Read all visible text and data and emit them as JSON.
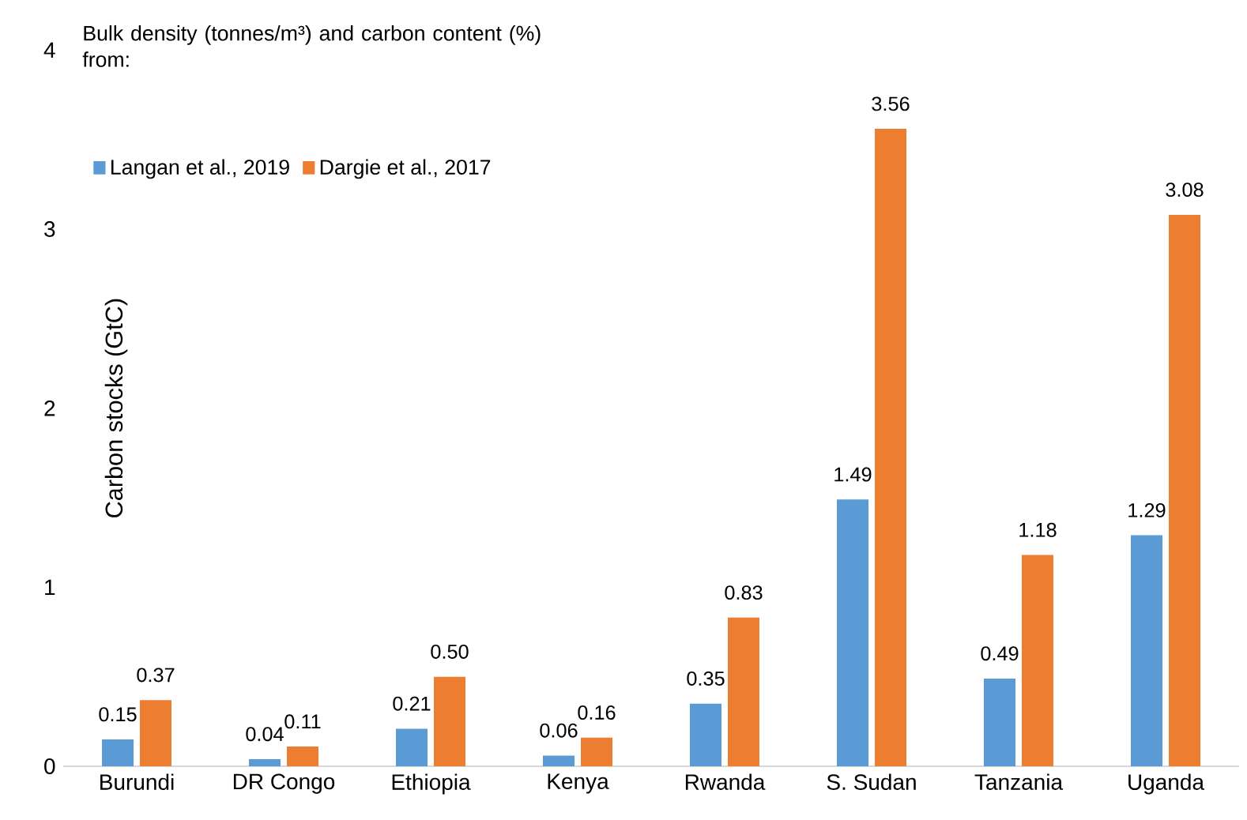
{
  "chart_data": {
    "type": "bar",
    "legend_title": "Bulk density (tonnes/m³) and carbon content (%) from:",
    "ylabel": "Carbon stocks (GtC)",
    "categories": [
      "Burundi",
      "DR Congo",
      "Ethiopia",
      "Kenya",
      "Rwanda",
      "S. Sudan",
      "Tanzania",
      "Uganda"
    ],
    "series": [
      {
        "name": "Langan et al., 2019",
        "color": "#5b9bd5",
        "values": [
          0.15,
          0.04,
          0.21,
          0.06,
          0.35,
          1.49,
          0.49,
          1.29
        ],
        "value_labels": [
          "0.15",
          "0.04",
          "0.21",
          "0.06",
          "0.35",
          "1.49",
          "0.49",
          "1.29"
        ]
      },
      {
        "name": "Dargie et al., 2017",
        "color": "#ed7d31",
        "values": [
          0.37,
          0.11,
          0.5,
          0.16,
          0.83,
          3.56,
          1.18,
          3.08
        ],
        "value_labels": [
          "0.37",
          "0.11",
          "0.50",
          "0.16",
          "0.83",
          "3.56",
          "1.18",
          "3.08"
        ]
      }
    ],
    "ylim": [
      0,
      4
    ],
    "yticks": [
      0,
      1,
      2,
      3,
      4
    ],
    "legend": "top left",
    "grid": false
  }
}
